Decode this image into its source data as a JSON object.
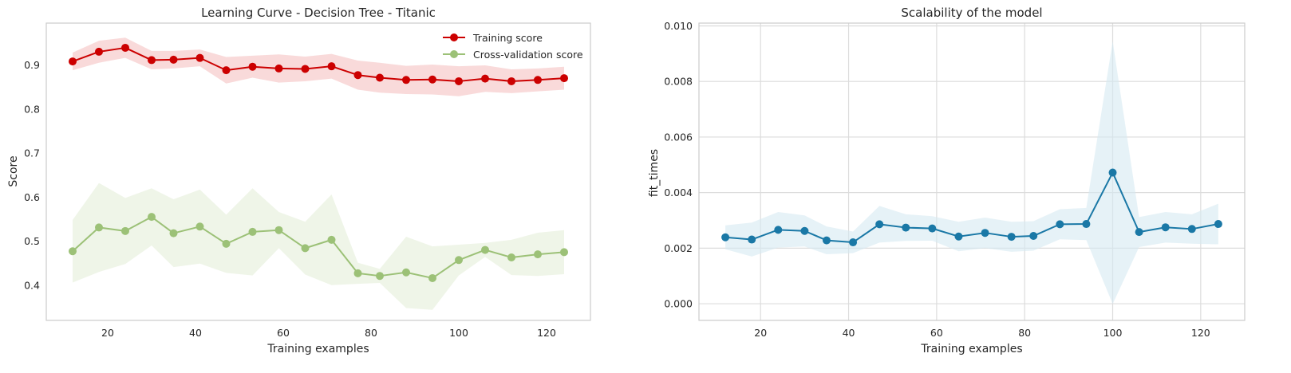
{
  "chart_data": [
    {
      "type": "line",
      "title": "Learning Curve - Decision Tree - Titanic",
      "xlabel": "Training examples",
      "ylabel": "Score",
      "xlim": [
        6,
        130
      ],
      "ylim": [
        0.32,
        0.995
      ],
      "xticks": [
        20,
        40,
        60,
        80,
        100,
        120
      ],
      "yticks": [
        0.4,
        0.5,
        0.6,
        0.7,
        0.8,
        0.9
      ],
      "grid": false,
      "legend": "top-right",
      "x": [
        12,
        18,
        24,
        30,
        35,
        41,
        47,
        53,
        59,
        65,
        71,
        77,
        82,
        88,
        94,
        100,
        106,
        112,
        118,
        124
      ],
      "series": [
        {
          "name": "Training score",
          "color": "#cc0000",
          "band_color": "#f5c2c2",
          "values": [
            0.908,
            0.93,
            0.939,
            0.911,
            0.912,
            0.916,
            0.888,
            0.896,
            0.892,
            0.891,
            0.897,
            0.877,
            0.871,
            0.866,
            0.867,
            0.863,
            0.869,
            0.863,
            0.866,
            0.87
          ],
          "band_upper": [
            0.928,
            0.955,
            0.962,
            0.932,
            0.932,
            0.935,
            0.918,
            0.921,
            0.924,
            0.919,
            0.925,
            0.91,
            0.905,
            0.898,
            0.901,
            0.897,
            0.899,
            0.89,
            0.892,
            0.896
          ],
          "band_lower": [
            0.888,
            0.905,
            0.916,
            0.89,
            0.892,
            0.897,
            0.858,
            0.871,
            0.86,
            0.863,
            0.869,
            0.844,
            0.837,
            0.834,
            0.833,
            0.829,
            0.839,
            0.836,
            0.84,
            0.844
          ]
        },
        {
          "name": "Cross-validation score",
          "color": "#9cc177",
          "band_color": "#e4eed8",
          "values": [
            0.477,
            0.531,
            0.523,
            0.555,
            0.518,
            0.533,
            0.494,
            0.521,
            0.525,
            0.484,
            0.503,
            0.427,
            0.421,
            0.429,
            0.416,
            0.457,
            0.48,
            0.463,
            0.47,
            0.475
          ],
          "band_upper": [
            0.548,
            0.632,
            0.598,
            0.62,
            0.595,
            0.617,
            0.56,
            0.62,
            0.566,
            0.544,
            0.606,
            0.451,
            0.437,
            0.51,
            0.488,
            0.492,
            0.496,
            0.503,
            0.519,
            0.525
          ],
          "band_lower": [
            0.406,
            0.43,
            0.448,
            0.49,
            0.441,
            0.449,
            0.428,
            0.422,
            0.484,
            0.424,
            0.4,
            0.403,
            0.405,
            0.348,
            0.344,
            0.422,
            0.464,
            0.423,
            0.421,
            0.425
          ]
        }
      ]
    },
    {
      "type": "line",
      "title": "Scalability of the model",
      "xlabel": "Training examples",
      "ylabel": "fit_times",
      "xlim": [
        6,
        130
      ],
      "ylim": [
        -0.0006,
        0.0101
      ],
      "xticks": [
        20,
        40,
        60,
        80,
        100,
        120
      ],
      "yticks": [
        0.0,
        0.002,
        0.004,
        0.006,
        0.008,
        0.01
      ],
      "ytick_labels": [
        "0.000",
        "0.002",
        "0.004",
        "0.006",
        "0.008",
        "0.010"
      ],
      "grid": true,
      "x": [
        12,
        18,
        24,
        30,
        35,
        41,
        47,
        53,
        59,
        65,
        71,
        77,
        82,
        88,
        94,
        100,
        106,
        112,
        118,
        124
      ],
      "series": [
        {
          "color": "#1a78a6",
          "band_color": "#d6e9f2",
          "values": [
            0.00239,
            0.00231,
            0.00266,
            0.00262,
            0.00228,
            0.00221,
            0.00286,
            0.00274,
            0.00271,
            0.00242,
            0.00255,
            0.00241,
            0.00244,
            0.00286,
            0.00287,
            0.00472,
            0.00258,
            0.00275,
            0.00269,
            0.00287
          ],
          "band_upper": [
            0.00282,
            0.00292,
            0.0033,
            0.00318,
            0.00278,
            0.0026,
            0.00352,
            0.00322,
            0.00315,
            0.00295,
            0.0031,
            0.00295,
            0.00297,
            0.0034,
            0.00345,
            0.00945,
            0.00312,
            0.0033,
            0.00322,
            0.0036
          ],
          "band_lower": [
            0.00196,
            0.0017,
            0.00202,
            0.00206,
            0.00178,
            0.00182,
            0.0022,
            0.00226,
            0.00227,
            0.00189,
            0.002,
            0.00187,
            0.00191,
            0.00232,
            0.00229,
            -1e-05,
            0.00204,
            0.0022,
            0.00216,
            0.00214
          ]
        }
      ]
    }
  ]
}
